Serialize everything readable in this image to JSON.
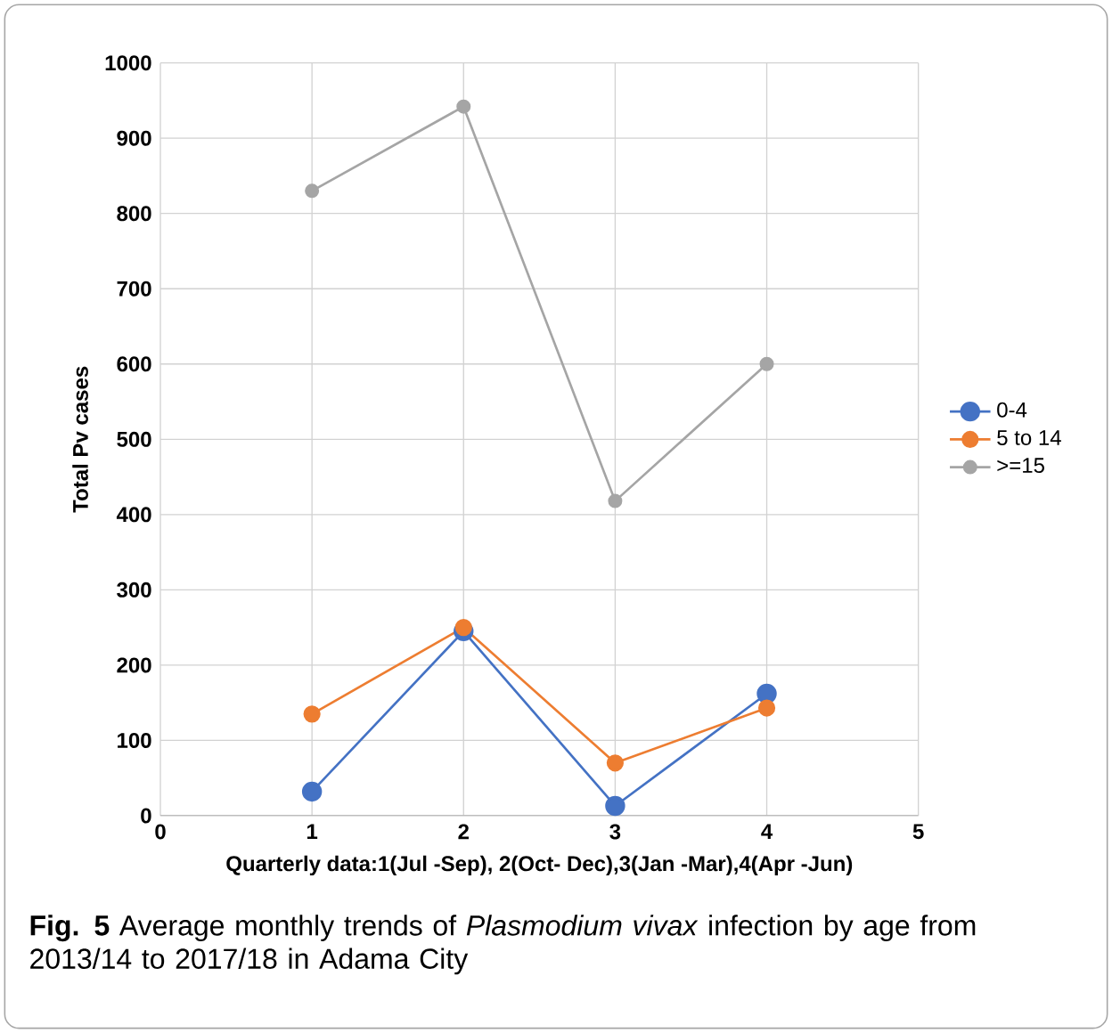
{
  "chart_data": {
    "type": "line",
    "xlabel": "Quarterly data:1(Jul -Sep), 2(Oct- Dec),3(Jan -Mar),4(Apr -Jun)",
    "ylabel": "Total Pv cases",
    "x": [
      1,
      2,
      3,
      4
    ],
    "series": [
      {
        "name": "0-4",
        "color": "#4472c4",
        "values": [
          32,
          245,
          13,
          162
        ]
      },
      {
        "name": "5 to 14",
        "color": "#ed7d31",
        "values": [
          135,
          250,
          70,
          143
        ]
      },
      {
        "name": ">=15",
        "color": "#a5a5a5",
        "values": [
          830,
          942,
          418,
          600
        ]
      }
    ],
    "xlim": [
      0,
      5
    ],
    "xticks": [
      0,
      1,
      2,
      3,
      4,
      5
    ],
    "ylim": [
      0,
      1000
    ],
    "yticks": [
      0,
      100,
      200,
      300,
      400,
      500,
      600,
      700,
      800,
      900,
      1000
    ],
    "grid": true,
    "legend": "right",
    "marker": "circle",
    "line_style": "solid",
    "annotations": [
      "**Fig. 5**  Average monthly trends of *Plasmodium vivax* infection by age from 2013/14 to 2017/18 in Adama City"
    ]
  }
}
